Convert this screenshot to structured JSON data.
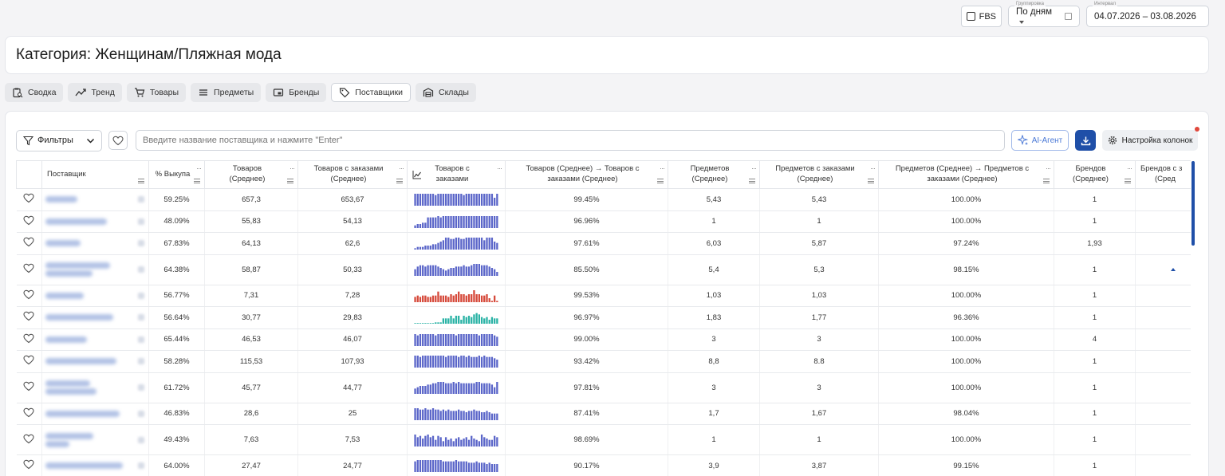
{
  "top": {
    "fbs_label": "FBS",
    "grouping": {
      "label": "Группировка",
      "value": "По дням"
    },
    "interval": {
      "label": "Интервал",
      "value": "04.07.2026 – 03.08.2026"
    }
  },
  "category_title": "Категория: Женщинам/Пляжная мода",
  "tabs": [
    {
      "label": "Сводка",
      "icon": "clipboard-search-icon"
    },
    {
      "label": "Тренд",
      "icon": "trend-icon"
    },
    {
      "label": "Товары",
      "icon": "cart-icon"
    },
    {
      "label": "Предметы",
      "icon": "list-icon"
    },
    {
      "label": "Бренды",
      "icon": "brand-icon"
    },
    {
      "label": "Поставщики",
      "icon": "tag-icon",
      "active": true
    },
    {
      "label": "Склады",
      "icon": "warehouse-icon"
    }
  ],
  "toolbar": {
    "filters_label": "Фильтры",
    "search_placeholder": "Введите название поставщика и нажмите \"Enter\"",
    "ai_label": "AI-Агент",
    "columns_label": "Настройка колонок"
  },
  "colors": {
    "accent": "#1f4fa8",
    "spark_default": "#5b66c9",
    "spark_red": "#d64a3b",
    "spark_teal": "#2bb3a6"
  },
  "table": {
    "headers": {
      "supplier": "Поставщик",
      "buyout": "% Выкупа",
      "goods_avg_1": "Товаров",
      "goods_avg_2": "(Среднее)",
      "goods_orders_1": "Товаров с заказами",
      "goods_orders_2": "(Среднее)",
      "goods_orders_chart_1": "Товаров с",
      "goods_orders_chart_2": "заказами",
      "goods_ratio_1": "Товаров (Среднее) → Товаров с",
      "goods_ratio_2": "заказами (Среднее)",
      "subjects_1": "Предметов",
      "subjects_2": "(Среднее)",
      "subjects_orders_1": "Предметов с заказами",
      "subjects_orders_2": "(Среднее)",
      "subjects_ratio_1": "Предметов (Среднее) → Предметов с",
      "subjects_ratio_2": "заказами (Среднее)",
      "brands_1": "Брендов",
      "brands_2": "(Среднее)",
      "brands_orders_1": "Брендов с з",
      "brands_orders_2": "(Сред"
    },
    "rows": [
      {
        "buyout": "59.25%",
        "goods": "657,3",
        "goods_orders": "653,67",
        "goods_ratio": "99.45%",
        "subjects": "5,43",
        "subjects_orders": "5,43",
        "subjects_ratio": "100.00%",
        "brands": "1",
        "brands_orders": "",
        "spark_color": "#5b66c9",
        "spark": [
          9,
          9,
          9,
          9,
          9,
          9,
          9,
          9,
          8,
          9,
          9,
          9,
          9,
          9,
          9,
          9,
          9,
          9,
          9,
          8,
          9,
          9,
          9,
          9,
          9,
          9,
          9,
          9,
          9,
          9,
          9,
          6,
          9
        ],
        "tall": false
      },
      {
        "buyout": "48.09%",
        "goods": "55,83",
        "goods_orders": "54,13",
        "goods_ratio": "96.96%",
        "subjects": "1",
        "subjects_orders": "1",
        "subjects_ratio": "100.00%",
        "brands": "1",
        "brands_orders": "",
        "spark_color": "#5b66c9",
        "spark": [
          2,
          3,
          3,
          4,
          4,
          8,
          8,
          8,
          8,
          9,
          8,
          9,
          9,
          9,
          9,
          9,
          9,
          9,
          9,
          9,
          9,
          9,
          9,
          9,
          9,
          9,
          9,
          9,
          9,
          9,
          9,
          9,
          9
        ],
        "tall": false
      },
      {
        "buyout": "67.83%",
        "goods": "64,13",
        "goods_orders": "62,6",
        "goods_ratio": "97.61%",
        "subjects": "6,03",
        "subjects_orders": "5,87",
        "subjects_ratio": "97.24%",
        "brands": "1,93",
        "brands_orders": "1",
        "spark_color": "#5b66c9",
        "spark": [
          1,
          2,
          2,
          2,
          3,
          3,
          3,
          4,
          4,
          5,
          6,
          7,
          9,
          9,
          8,
          8,
          9,
          9,
          8,
          8,
          9,
          9,
          9,
          9,
          9,
          9,
          9,
          7,
          9,
          9,
          9,
          6,
          5
        ],
        "tall": false
      },
      {
        "buyout": "64.38%",
        "goods": "58,87",
        "goods_orders": "50,33",
        "goods_ratio": "85.50%",
        "subjects": "5,4",
        "subjects_orders": "5,3",
        "subjects_ratio": "98.15%",
        "brands": "1",
        "brands_orders": "",
        "spark_color": "#5b66c9",
        "spark": [
          5,
          7,
          8,
          8,
          7,
          8,
          8,
          8,
          8,
          7,
          6,
          5,
          4,
          5,
          6,
          6,
          7,
          7,
          7,
          8,
          7,
          7,
          8,
          9,
          9,
          9,
          8,
          8,
          8,
          7,
          6,
          5,
          3
        ],
        "tall": true
      },
      {
        "buyout": "56.77%",
        "goods": "7,31",
        "goods_orders": "7,28",
        "goods_ratio": "99.53%",
        "subjects": "1,03",
        "subjects_orders": "1,03",
        "subjects_ratio": "100.00%",
        "brands": "1",
        "brands_orders": "",
        "spark_color": "#d64a3b",
        "spark": [
          4,
          5,
          4,
          5,
          5,
          4,
          4,
          5,
          5,
          8,
          5,
          5,
          5,
          4,
          6,
          5,
          6,
          8,
          6,
          6,
          5,
          6,
          6,
          9,
          6,
          6,
          5,
          5,
          6,
          3,
          1,
          5,
          1
        ],
        "tall": false
      },
      {
        "buyout": "56.64%",
        "goods": "30,77",
        "goods_orders": "29,83",
        "goods_ratio": "96.97%",
        "subjects": "1,83",
        "subjects_orders": "1,77",
        "subjects_ratio": "96.36%",
        "brands": "1",
        "brands_orders": "",
        "spark_color": "#2bb3a6",
        "spark": [
          0,
          0,
          0,
          0,
          0,
          0,
          0,
          0,
          1,
          1,
          1,
          4,
          4,
          4,
          6,
          4,
          6,
          6,
          3,
          6,
          5,
          6,
          5,
          7,
          8,
          7,
          5,
          4,
          5,
          3,
          5,
          4,
          4
        ],
        "tall": false
      },
      {
        "buyout": "65.44%",
        "goods": "46,53",
        "goods_orders": "46,07",
        "goods_ratio": "99.00%",
        "subjects": "3",
        "subjects_orders": "3",
        "subjects_ratio": "100.00%",
        "brands": "4",
        "brands_orders": "",
        "spark_color": "#5b66c9",
        "spark": [
          9,
          8,
          9,
          9,
          9,
          9,
          9,
          9,
          8,
          9,
          9,
          9,
          9,
          9,
          9,
          9,
          8,
          9,
          9,
          9,
          9,
          9,
          9,
          9,
          9,
          8,
          9,
          9,
          9,
          9,
          9,
          8,
          7
        ],
        "tall": false
      },
      {
        "buyout": "58.28%",
        "goods": "115,53",
        "goods_orders": "107,93",
        "goods_ratio": "93.42%",
        "subjects": "8,8",
        "subjects_orders": "8.8",
        "subjects_ratio": "100.00%",
        "brands": "1",
        "brands_orders": "",
        "spark_color": "#5b66c9",
        "spark": [
          9,
          9,
          8,
          9,
          9,
          9,
          9,
          9,
          9,
          9,
          9,
          9,
          8,
          9,
          9,
          9,
          9,
          8,
          9,
          9,
          8,
          9,
          8,
          8,
          8,
          9,
          8,
          9,
          8,
          8,
          8,
          7,
          6
        ],
        "tall": false
      },
      {
        "buyout": "61.72%",
        "goods": "45,77",
        "goods_orders": "44,77",
        "goods_ratio": "97.81%",
        "subjects": "3",
        "subjects_orders": "3",
        "subjects_ratio": "100.00%",
        "brands": "1",
        "brands_orders": "",
        "spark_color": "#5b66c9",
        "spark": [
          4,
          5,
          6,
          6,
          6,
          7,
          7,
          8,
          8,
          9,
          9,
          9,
          8,
          8,
          8,
          9,
          8,
          9,
          8,
          8,
          8,
          8,
          8,
          8,
          9,
          9,
          8,
          8,
          8,
          8,
          7,
          5,
          9
        ],
        "tall": true
      },
      {
        "buyout": "46.83%",
        "goods": "28,6",
        "goods_orders": "25",
        "goods_ratio": "87.41%",
        "subjects": "1,7",
        "subjects_orders": "1,67",
        "subjects_ratio": "98.04%",
        "brands": "1",
        "brands_orders": "",
        "spark_color": "#5b66c9",
        "spark": [
          9,
          9,
          8,
          8,
          9,
          8,
          8,
          9,
          8,
          8,
          7,
          8,
          7,
          8,
          7,
          7,
          7,
          8,
          7,
          7,
          6,
          7,
          7,
          8,
          7,
          7,
          6,
          6,
          7,
          6,
          5,
          5,
          5
        ],
        "tall": false
      },
      {
        "buyout": "49.43%",
        "goods": "7,63",
        "goods_orders": "7,53",
        "goods_ratio": "98.69%",
        "subjects": "1",
        "subjects_orders": "1",
        "subjects_ratio": "100.00%",
        "brands": "1",
        "brands_orders": "",
        "spark_color": "#5b66c9",
        "spark": [
          9,
          7,
          8,
          6,
          8,
          9,
          7,
          8,
          5,
          8,
          7,
          4,
          7,
          5,
          6,
          4,
          6,
          7,
          5,
          6,
          7,
          5,
          8,
          6,
          5,
          4,
          9,
          7,
          6,
          5,
          5,
          8,
          7
        ],
        "tall": true
      },
      {
        "buyout": "64.00%",
        "goods": "27,47",
        "goods_orders": "24,77",
        "goods_ratio": "90.17%",
        "subjects": "3,9",
        "subjects_orders": "3,87",
        "subjects_ratio": "99.15%",
        "brands": "1",
        "brands_orders": "",
        "spark_color": "#5b66c9",
        "spark": [
          8,
          9,
          9,
          9,
          9,
          9,
          9,
          9,
          9,
          9,
          9,
          8,
          8,
          8,
          8,
          8,
          9,
          8,
          8,
          8,
          8,
          7,
          7,
          7,
          8,
          7,
          7,
          7,
          6,
          7,
          6,
          6,
          6
        ],
        "tall": false
      }
    ]
  }
}
